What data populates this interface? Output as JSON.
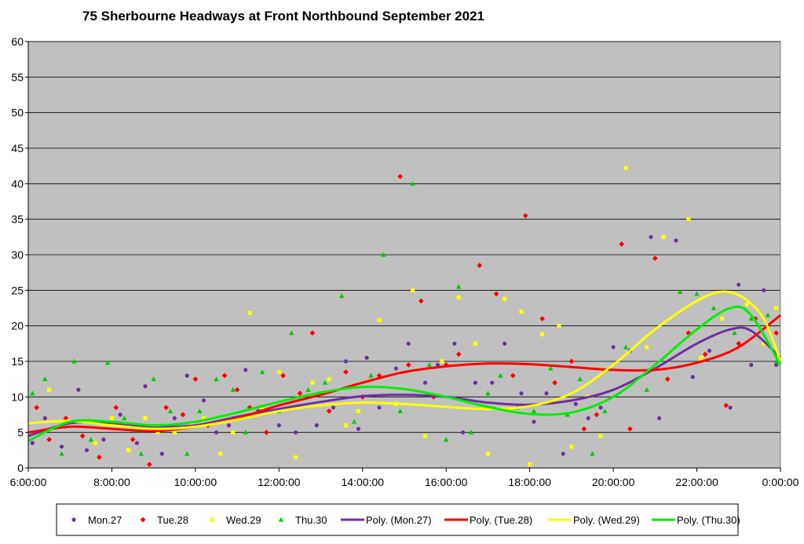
{
  "chart_data": {
    "type": "scatter",
    "title": "75 Sherbourne Headways at Front Northbound September 2021",
    "xlabel": "",
    "ylabel": "",
    "x_unit": "hours after midnight",
    "xlim": [
      6,
      24
    ],
    "ylim": [
      0,
      60
    ],
    "ytick_step": 5,
    "x_ticks": [
      {
        "value": 6,
        "label": "6:00:00"
      },
      {
        "value": 8,
        "label": "8:00:00"
      },
      {
        "value": 10,
        "label": "10:00:00"
      },
      {
        "value": 12,
        "label": "12:00:00"
      },
      {
        "value": 14,
        "label": "14:00:00"
      },
      {
        "value": 16,
        "label": "16:00:00"
      },
      {
        "value": 18,
        "label": "18:00:00"
      },
      {
        "value": 20,
        "label": "20:00:00"
      },
      {
        "value": 22,
        "label": "22:00:00"
      },
      {
        "value": 24,
        "label": "0:00:00"
      }
    ],
    "y_ticks": [
      "0",
      "5",
      "10",
      "15",
      "20",
      "25",
      "30",
      "35",
      "40",
      "45",
      "50",
      "55",
      "60"
    ],
    "grid": true,
    "plot_background": "#c0c0c0",
    "legend_position": "bottom",
    "series": [
      {
        "name": "Mon.27",
        "marker": "circle",
        "color": "#7030a0",
        "points": [
          [
            6.1,
            3.5
          ],
          [
            6.4,
            7
          ],
          [
            6.8,
            3
          ],
          [
            7.2,
            11
          ],
          [
            7.4,
            2.5
          ],
          [
            7.8,
            4
          ],
          [
            8.2,
            7.5
          ],
          [
            8.6,
            3.5
          ],
          [
            8.8,
            11.5
          ],
          [
            9.2,
            2
          ],
          [
            9.5,
            7
          ],
          [
            9.8,
            13
          ],
          [
            10.2,
            9.5
          ],
          [
            10.5,
            5
          ],
          [
            10.8,
            6
          ],
          [
            11.2,
            13.8
          ],
          [
            11.5,
            8
          ],
          [
            12,
            6
          ],
          [
            12.4,
            5
          ],
          [
            12.9,
            6
          ],
          [
            13.3,
            8.5
          ],
          [
            13.6,
            15
          ],
          [
            13.9,
            5.5
          ],
          [
            14.1,
            15.5
          ],
          [
            14.4,
            8.5
          ],
          [
            14.8,
            14
          ],
          [
            15.1,
            17.5
          ],
          [
            15.5,
            12
          ],
          [
            15.8,
            14.5
          ],
          [
            16.2,
            17.5
          ],
          [
            16.4,
            5
          ],
          [
            16.7,
            12
          ],
          [
            17.1,
            12
          ],
          [
            17.4,
            17.5
          ],
          [
            17.8,
            10.5
          ],
          [
            18.1,
            6.5
          ],
          [
            18.4,
            10.5
          ],
          [
            18.8,
            2
          ],
          [
            19.1,
            9
          ],
          [
            19.4,
            7
          ],
          [
            19.7,
            8.5
          ],
          [
            20.0,
            17
          ],
          [
            20.4,
            16.5
          ],
          [
            20.9,
            32.5
          ],
          [
            21.1,
            7
          ],
          [
            21.5,
            32
          ],
          [
            21.9,
            12.8
          ],
          [
            22.3,
            16.5
          ],
          [
            22.8,
            8.5
          ],
          [
            23.0,
            25.8
          ],
          [
            23.3,
            14.5
          ],
          [
            23.6,
            25
          ],
          [
            23.9,
            14.5
          ]
        ]
      },
      {
        "name": "Tue.28",
        "marker": "diamond",
        "color": "#ff0000",
        "points": [
          [
            6.2,
            8.5
          ],
          [
            6.5,
            4
          ],
          [
            6.9,
            7
          ],
          [
            7.3,
            4.5
          ],
          [
            7.7,
            1.5
          ],
          [
            8.1,
            8.5
          ],
          [
            8.5,
            4
          ],
          [
            8.9,
            0.5
          ],
          [
            9.3,
            8.5
          ],
          [
            9.7,
            7.5
          ],
          [
            10.0,
            12.5
          ],
          [
            10.3,
            6
          ],
          [
            10.7,
            13
          ],
          [
            11.0,
            11
          ],
          [
            11.3,
            8.5
          ],
          [
            11.7,
            5
          ],
          [
            12.1,
            13
          ],
          [
            12.5,
            10.5
          ],
          [
            12.8,
            19
          ],
          [
            13.2,
            8
          ],
          [
            13.6,
            13.5
          ],
          [
            14.0,
            10
          ],
          [
            14.4,
            13
          ],
          [
            14.9,
            41
          ],
          [
            15.1,
            14.5
          ],
          [
            15.4,
            23.5
          ],
          [
            15.7,
            10
          ],
          [
            16.0,
            14.5
          ],
          [
            16.3,
            16
          ],
          [
            16.8,
            28.5
          ],
          [
            17.2,
            24.5
          ],
          [
            17.6,
            13
          ],
          [
            17.9,
            35.5
          ],
          [
            18.3,
            21
          ],
          [
            18.6,
            12
          ],
          [
            19.0,
            15
          ],
          [
            19.3,
            5.5
          ],
          [
            19.6,
            7.5
          ],
          [
            20.2,
            31.5
          ],
          [
            20.4,
            5.5
          ],
          [
            21.0,
            29.5
          ],
          [
            21.3,
            12.5
          ],
          [
            21.8,
            19
          ],
          [
            22.2,
            16
          ],
          [
            22.7,
            8.8
          ],
          [
            23.0,
            17.5
          ],
          [
            23.4,
            21
          ],
          [
            23.9,
            19
          ]
        ]
      },
      {
        "name": "Wed.29",
        "marker": "square",
        "color": "#ffff00",
        "points": [
          [
            6.2,
            5
          ],
          [
            6.5,
            11
          ],
          [
            6.9,
            6.5
          ],
          [
            7.2,
            6.5
          ],
          [
            7.6,
            3.5
          ],
          [
            8.0,
            7
          ],
          [
            8.4,
            2.5
          ],
          [
            8.8,
            7
          ],
          [
            9.1,
            5
          ],
          [
            9.5,
            5
          ],
          [
            9.9,
            6
          ],
          [
            10.2,
            7
          ],
          [
            10.6,
            2
          ],
          [
            10.9,
            5
          ],
          [
            11.3,
            21.8
          ],
          [
            11.6,
            8.5
          ],
          [
            12.0,
            13.5
          ],
          [
            12.4,
            1.5
          ],
          [
            12.8,
            12
          ],
          [
            13.2,
            12.5
          ],
          [
            13.6,
            6
          ],
          [
            13.9,
            8
          ],
          [
            14.4,
            20.8
          ],
          [
            14.8,
            9
          ],
          [
            15.2,
            25
          ],
          [
            15.5,
            4.5
          ],
          [
            15.9,
            15
          ],
          [
            16.3,
            24
          ],
          [
            16.7,
            17.5
          ],
          [
            17.0,
            2
          ],
          [
            17.4,
            23.8
          ],
          [
            17.8,
            22
          ],
          [
            18.0,
            0.5
          ],
          [
            18.3,
            18.8
          ],
          [
            18.7,
            20
          ],
          [
            19.0,
            3
          ],
          [
            19.4,
            10
          ],
          [
            19.7,
            4.5
          ],
          [
            20.3,
            42.2
          ],
          [
            20.8,
            17
          ],
          [
            21.2,
            32.5
          ],
          [
            21.8,
            35
          ],
          [
            22.1,
            15.5
          ],
          [
            22.6,
            21
          ],
          [
            23.2,
            23
          ],
          [
            23.6,
            17.5
          ],
          [
            23.9,
            22.5
          ]
        ]
      },
      {
        "name": "Thu.30",
        "marker": "triangle",
        "color": "#00cc00",
        "points": [
          [
            6.1,
            10.5
          ],
          [
            6.4,
            12.5
          ],
          [
            6.8,
            2
          ],
          [
            7.1,
            15
          ],
          [
            7.5,
            4
          ],
          [
            7.9,
            14.8
          ],
          [
            8.3,
            7
          ],
          [
            8.7,
            2
          ],
          [
            9.0,
            12.5
          ],
          [
            9.4,
            8
          ],
          [
            9.8,
            2
          ],
          [
            10.1,
            8
          ],
          [
            10.5,
            12.5
          ],
          [
            10.9,
            11
          ],
          [
            11.2,
            5
          ],
          [
            11.6,
            13.5
          ],
          [
            12.0,
            8
          ],
          [
            12.3,
            19
          ],
          [
            12.7,
            11
          ],
          [
            13.1,
            12
          ],
          [
            13.5,
            24.2
          ],
          [
            13.8,
            6.5
          ],
          [
            14.2,
            13
          ],
          [
            14.5,
            30
          ],
          [
            14.9,
            8
          ],
          [
            15.2,
            40
          ],
          [
            15.6,
            14.5
          ],
          [
            16.0,
            4
          ],
          [
            16.3,
            25.5
          ],
          [
            16.6,
            5
          ],
          [
            17.0,
            10.5
          ],
          [
            17.3,
            13
          ],
          [
            17.7,
            8.5
          ],
          [
            18.1,
            8
          ],
          [
            18.5,
            14
          ],
          [
            18.9,
            7.5
          ],
          [
            19.2,
            12.5
          ],
          [
            19.5,
            2
          ],
          [
            19.8,
            8
          ],
          [
            20.3,
            17
          ],
          [
            20.8,
            11
          ],
          [
            21.6,
            24.8
          ],
          [
            22.0,
            24.5
          ],
          [
            22.4,
            22.5
          ],
          [
            22.9,
            19
          ],
          [
            23.3,
            21
          ],
          [
            23.7,
            21.5
          ],
          [
            23.9,
            15
          ]
        ]
      }
    ],
    "trendlines": [
      {
        "name": "Poly. (Mon.27)",
        "color": "#7030a0",
        "points": [
          [
            6,
            4.5
          ],
          [
            7,
            6.3
          ],
          [
            8,
            6.3
          ],
          [
            9,
            5.8
          ],
          [
            10,
            6
          ],
          [
            11,
            7.2
          ],
          [
            12,
            8.3
          ],
          [
            13,
            9.3
          ],
          [
            14,
            10.1
          ],
          [
            15,
            10.3
          ],
          [
            16,
            10
          ],
          [
            17,
            9.2
          ],
          [
            18,
            8.9
          ],
          [
            19,
            9.5
          ],
          [
            20,
            11
          ],
          [
            21,
            14
          ],
          [
            22,
            17.5
          ],
          [
            22.8,
            19.5
          ],
          [
            23.3,
            19.3
          ],
          [
            24,
            15.5
          ]
        ]
      },
      {
        "name": "Poly. (Tue.28)",
        "color": "#ff0000",
        "points": [
          [
            6,
            5
          ],
          [
            7,
            5.8
          ],
          [
            8,
            5.5
          ],
          [
            9,
            5.2
          ],
          [
            10,
            5.8
          ],
          [
            11,
            7
          ],
          [
            12,
            8.8
          ],
          [
            13,
            10.3
          ],
          [
            14,
            12
          ],
          [
            15,
            13.5
          ],
          [
            16,
            14.3
          ],
          [
            17,
            14.7
          ],
          [
            18,
            14.6
          ],
          [
            19,
            14.2
          ],
          [
            20,
            13.8
          ],
          [
            21,
            13.8
          ],
          [
            22,
            14.8
          ],
          [
            23,
            17
          ],
          [
            24,
            21.5
          ]
        ]
      },
      {
        "name": "Poly. (Wed.29)",
        "color": "#ffff00",
        "points": [
          [
            6,
            6.3
          ],
          [
            7,
            6.6
          ],
          [
            8,
            6
          ],
          [
            9,
            5.5
          ],
          [
            10,
            5.8
          ],
          [
            11,
            6.8
          ],
          [
            12,
            8
          ],
          [
            13,
            8.8
          ],
          [
            14,
            9.2
          ],
          [
            15,
            9
          ],
          [
            16,
            8.6
          ],
          [
            17,
            8.3
          ],
          [
            18,
            8.7
          ],
          [
            19,
            10.5
          ],
          [
            20,
            14.5
          ],
          [
            21,
            19.5
          ],
          [
            22,
            23.5
          ],
          [
            22.6,
            24.8
          ],
          [
            23.1,
            24
          ],
          [
            23.6,
            21
          ],
          [
            24,
            15
          ]
        ]
      },
      {
        "name": "Poly. (Thu.30)",
        "color": "#00ee00",
        "points": [
          [
            6,
            3.8
          ],
          [
            7,
            6.5
          ],
          [
            8,
            6.5
          ],
          [
            9,
            6
          ],
          [
            10,
            6.5
          ],
          [
            11,
            7.8
          ],
          [
            12,
            9.3
          ],
          [
            13,
            10.6
          ],
          [
            14,
            11.4
          ],
          [
            15,
            11.1
          ],
          [
            16,
            10
          ],
          [
            17,
            8.6
          ],
          [
            18,
            7.6
          ],
          [
            19,
            7.8
          ],
          [
            20,
            10
          ],
          [
            21,
            14.5
          ],
          [
            22,
            19.5
          ],
          [
            22.8,
            22.5
          ],
          [
            23.3,
            21.5
          ],
          [
            24,
            14.5
          ]
        ]
      }
    ]
  }
}
